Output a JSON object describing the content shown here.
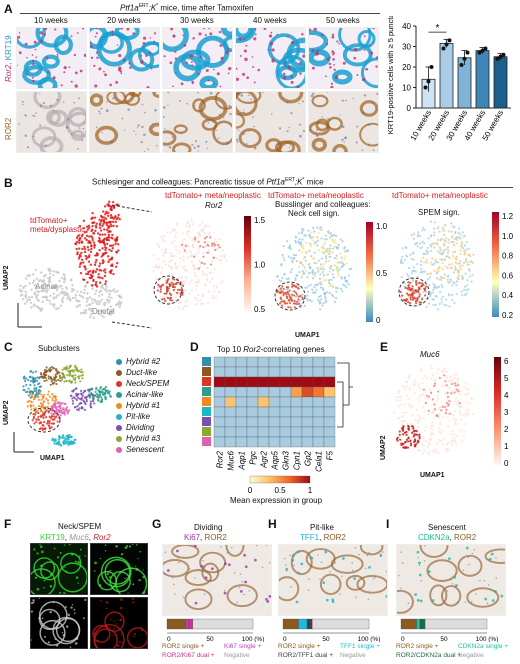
{
  "panel_labels": {
    "A": "A",
    "B": "B",
    "C": "C",
    "D": "D",
    "E": "E",
    "F": "F",
    "G": "G",
    "H": "H",
    "I": "I"
  },
  "panelA": {
    "title_prefix": "Ptf1a",
    "title_sup": "ERT",
    "title_mid": ";K",
    "title_sup2": "*",
    "title_suffix": " mice, time after Tamoxifen",
    "timepoints": [
      "10 weeks",
      "20 weeks",
      "30 weeks",
      "40 weeks",
      "50 weeks"
    ],
    "row1_label_a": "Ror2",
    "row1_label_b": ", KRT19",
    "row2_label": "ROR2",
    "colors": {
      "ror2": "#c0306a",
      "krt19": "#1aa0d0",
      "ror2_ihc": "#a06020"
    }
  },
  "chart_data": {
    "type": "bar",
    "categories": [
      "10 weeks",
      "20 weeks",
      "30 weeks",
      "40 weeks",
      "50 weeks"
    ],
    "values": [
      14,
      31.5,
      24.5,
      28,
      25
    ],
    "errors": [
      6,
      2,
      3.5,
      1.5,
      1.5
    ],
    "points": [
      [
        10,
        13,
        20
      ],
      [
        29,
        31,
        33
      ],
      [
        21,
        24,
        27
      ],
      [
        27,
        28,
        29
      ],
      [
        24,
        25,
        26
      ]
    ],
    "bar_colors": [
      "#cfe3f2",
      "#a9cde8",
      "#7fb3d8",
      "#3f86b8",
      "#1d5f8c"
    ],
    "ylabel": "KRT19-positive cells with ≥ 5 puncta (%)",
    "ylim": [
      0,
      40
    ],
    "yticks": [
      0,
      10,
      20,
      30,
      40
    ],
    "significance": "*"
  },
  "panelB": {
    "title_prefix": "Schlesinger and colleagues: Pancreatic tissue of ",
    "title_gene": "Ptf1a",
    "title_sup": "ERT",
    "title_mid": ";K",
    "title_sup2": "*",
    "title_suffix": " mice",
    "umap_label_red": "tdTomato+ meta/dysplastic",
    "acinar": "Acinar",
    "ductal": "Ductal",
    "umap1": "UMAP1",
    "umap2": "UMAP2",
    "p2_title": "tdTomato+ meta/neoplastic",
    "p2_gene": "Ror2",
    "p2_ticks": [
      "1.5",
      "1.0",
      "0.5"
    ],
    "p3_title": "tdTomato+ meta/neoplastic",
    "p3_sub1": "Busslinger and colleagues:",
    "p3_sub2": "Neck cell sign.",
    "p3_ticks": [
      "1.0",
      "0.5",
      "0"
    ],
    "p4_title": "tdTomato+ meta/neoplastic",
    "p4_sub": "SPEM sign.",
    "p4_ticks": [
      "1.2",
      "1.0",
      "0.8",
      "0.6",
      "0.4",
      "0.2"
    ]
  },
  "panelC": {
    "title": "Subclusters",
    "umap1": "UMAP1",
    "umap2": "UMAP2",
    "clusters": [
      {
        "name": "Hybrid #2",
        "color": "#2e8fb0"
      },
      {
        "name": "Duct-like",
        "color": "#8c5a1e"
      },
      {
        "name": "Neck/SPEM",
        "color": "#e0342a"
      },
      {
        "name": "Acinar-like",
        "color": "#2aa08c"
      },
      {
        "name": "Hybrid #1",
        "color": "#f08a1e"
      },
      {
        "name": "Pit-like",
        "color": "#1fb6c8"
      },
      {
        "name": "Dividing",
        "color": "#7a4fb0"
      },
      {
        "name": "Hybrid #3",
        "color": "#8aa832"
      },
      {
        "name": "Senescent",
        "color": "#e060b0"
      }
    ]
  },
  "panelD": {
    "title_prefix": "Top 10 ",
    "title_gene": "Ror2",
    "title_suffix": "-correlating genes",
    "genes": [
      "Ror2",
      "Muc6",
      "Aqp1",
      "Pgc",
      "Agr2",
      "Aqp5",
      "Gkn3",
      "Cpn1",
      "Gp2",
      "Cela1",
      "F5"
    ],
    "legend_title": "Mean expression in group",
    "legend_ticks": [
      "0",
      "0.5",
      "1"
    ],
    "row_colors": [
      "#2e8fb0",
      "#8c5a1e",
      "#e0342a",
      "#2aa08c",
      "#f08a1e",
      "#1fb6c8",
      "#7a4fb0",
      "#8aa832",
      "#e060b0"
    ],
    "matrix": [
      [
        0.15,
        0.1,
        0.1,
        0.1,
        0.1,
        0.1,
        0.1,
        0.1,
        0.1,
        0.1,
        0.1
      ],
      [
        0.1,
        0.2,
        0.1,
        0.1,
        0.15,
        0.1,
        0.1,
        0.1,
        0.1,
        0.1,
        0.1
      ],
      [
        1.0,
        1.0,
        1.0,
        1.0,
        1.0,
        1.0,
        1.0,
        1.0,
        1.0,
        1.0,
        1.0
      ],
      [
        0.1,
        0.1,
        0.15,
        0.1,
        0.1,
        0.2,
        0.1,
        0.45,
        0.75,
        0.6,
        0.3
      ],
      [
        0.2,
        0.3,
        0.2,
        0.15,
        0.3,
        0.25,
        0.2,
        0.15,
        0.2,
        0.1,
        0.15
      ],
      [
        0.1,
        0.1,
        0.1,
        0.1,
        0.2,
        0.1,
        0.1,
        0.1,
        0.1,
        0.1,
        0.1
      ],
      [
        0.2,
        0.25,
        0.15,
        0.1,
        0.2,
        0.15,
        0.1,
        0.1,
        0.1,
        0.1,
        0.1
      ],
      [
        0.1,
        0.1,
        0.1,
        0.1,
        0.15,
        0.1,
        0.1,
        0.1,
        0.1,
        0.1,
        0.1
      ],
      [
        0.1,
        0.1,
        0.1,
        0.1,
        0.1,
        0.1,
        0.1,
        0.1,
        0.1,
        0.1,
        0.1
      ]
    ]
  },
  "panelE": {
    "gene": "Muc6",
    "umap1": "UMAP1",
    "umap2": "UMAP2",
    "ticks": [
      "6",
      "5",
      "4",
      "3",
      "2",
      "1",
      "0"
    ]
  },
  "panelF": {
    "title": "Neck/SPEM",
    "l1": "KRT19",
    "l2": "Muc6",
    "l3": "Ror2"
  },
  "panelG": {
    "title": "Dividing",
    "lab1": "Ki67",
    "lab2": "ROR2",
    "legend": [
      "ROR2 single +",
      "Ki67 single +",
      "ROR2/Ki67 dual +",
      "Negative"
    ],
    "axis": [
      "0",
      "50",
      "100 (%)"
    ],
    "segments": [
      0.22,
      0.03,
      0.05,
      0.7
    ],
    "colors": [
      "#8c5a1e",
      "#c040c0",
      "#d03090",
      "#dddddd"
    ]
  },
  "panelH": {
    "title": "Pit-like",
    "lab1": "TFF1",
    "lab2": "ROR2",
    "legend": [
      "ROR2 single +",
      "TFF1 single +",
      "ROR2/TFF1 dual +",
      "Negative"
    ],
    "axis": [
      "0",
      "50",
      "100 (%)"
    ],
    "segments": [
      0.18,
      0.1,
      0.06,
      0.66
    ],
    "colors": [
      "#8c5a1e",
      "#20b8d8",
      "#404040",
      "#dddddd"
    ]
  },
  "panelI": {
    "title": "Senescent",
    "lab1": "CDKN2a",
    "lab2": "ROR2",
    "legend": [
      "ROR2 single +",
      "CDKN2a single +",
      "ROR2/CDKN2a dual +",
      "Negative"
    ],
    "axis": [
      "0",
      "50",
      "100 (%)"
    ],
    "segments": [
      0.18,
      0.04,
      0.06,
      0.72
    ],
    "colors": [
      "#8c5a1e",
      "#20c0a0",
      "#1e6a40",
      "#dddddd"
    ]
  }
}
